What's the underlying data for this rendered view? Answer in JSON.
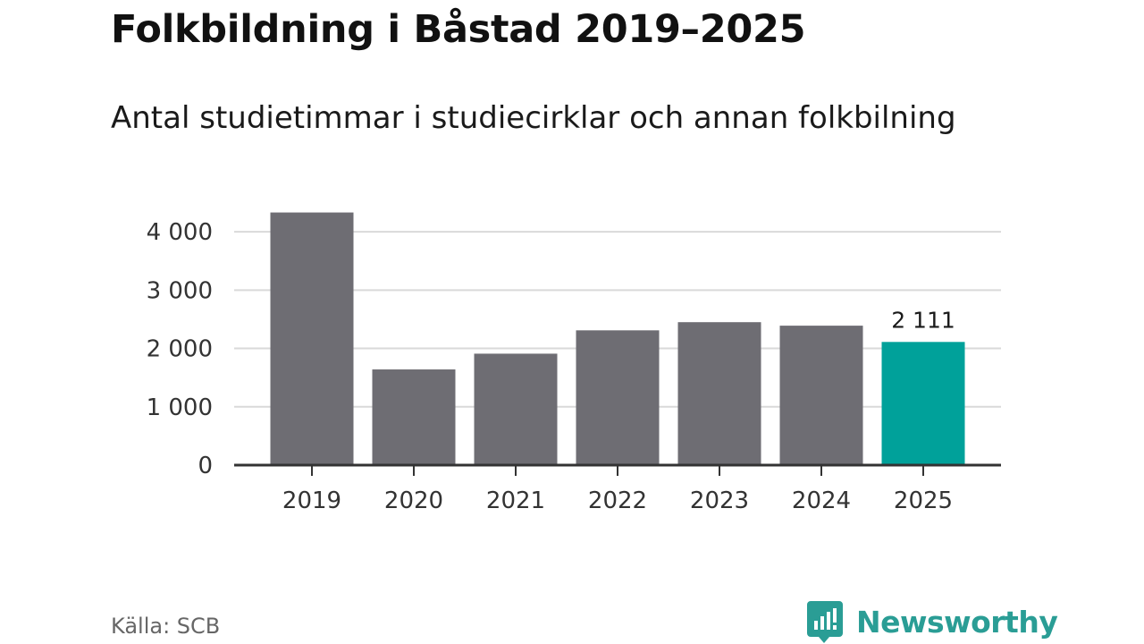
{
  "title": "Folkbildning i Båstad 2019–2025",
  "subtitle": "Antal studietimmar i studiecirklar och annan folkbilning",
  "source": "Källa: SCB",
  "brand": {
    "name": "Newsworthy",
    "color": "#2a9d95",
    "icon": "newsworthy-logo-icon"
  },
  "chart_data": {
    "type": "bar",
    "categories": [
      "2019",
      "2020",
      "2021",
      "2022",
      "2023",
      "2024",
      "2025"
    ],
    "values": [
      4330,
      1640,
      1910,
      2310,
      2450,
      2390,
      2111
    ],
    "ylim": [
      0,
      4400
    ],
    "yticks": [
      {
        "value": 0,
        "label": "0"
      },
      {
        "value": 1000,
        "label": "1 000"
      },
      {
        "value": 2000,
        "label": "2 000"
      },
      {
        "value": 3000,
        "label": "3 000"
      },
      {
        "value": 4000,
        "label": "4 000"
      }
    ],
    "highlight_index": 6,
    "highlight_label": "2 111",
    "bar_color": "#6e6d73",
    "highlight_color": "#00a19a",
    "grid": true
  }
}
